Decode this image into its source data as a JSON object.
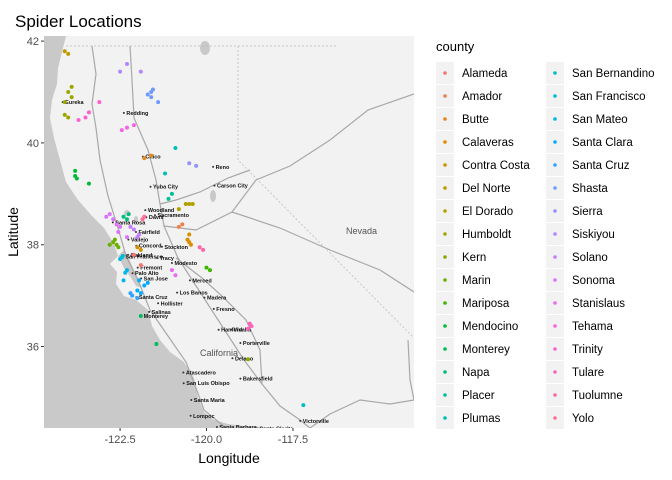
{
  "chart_data": {
    "type": "scatter",
    "title": "Spider Locations",
    "xlabel": "Longitude",
    "ylabel": "Latitude",
    "xlim": [
      -124.7,
      -114.0
    ],
    "ylim": [
      34.4,
      42.1
    ],
    "x_ticks": [
      -122.5,
      -120.0,
      -117.5
    ],
    "x_tick_labels": [
      "-122.5",
      "-120.0",
      "-117.5"
    ],
    "y_ticks": [
      36,
      38,
      40,
      42
    ],
    "y_tick_labels": [
      "36",
      "38",
      "40",
      "42"
    ],
    "background": "basemap",
    "legend": {
      "title": "county",
      "placement": "right",
      "columns": 2
    },
    "series": [
      {
        "name": "Alameda",
        "color": "#F8766D",
        "points": [
          [
            -121.9,
            37.6
          ],
          [
            -122.1,
            37.8
          ]
        ]
      },
      {
        "name": "Amador",
        "color": "#F07F48",
        "points": [
          [
            -120.7,
            38.4
          ],
          [
            -120.8,
            38.35
          ]
        ]
      },
      {
        "name": "Butte",
        "color": "#E7861B",
        "points": [
          [
            -121.6,
            39.75
          ],
          [
            -121.8,
            39.7
          ]
        ]
      },
      {
        "name": "Calaveras",
        "color": "#DB8E00",
        "points": [
          [
            -120.5,
            38.2
          ],
          [
            -120.55,
            38.1
          ],
          [
            -120.5,
            38.05
          ],
          [
            -120.45,
            38.0
          ]
        ]
      },
      {
        "name": "Contra Costa",
        "color": "#CF9400",
        "points": [
          [
            -122.0,
            37.95
          ],
          [
            -121.9,
            37.9
          ]
        ]
      },
      {
        "name": "Del Norte",
        "color": "#C09B00",
        "points": [
          [
            -124.0,
            41.75
          ],
          [
            -124.1,
            41.8
          ]
        ]
      },
      {
        "name": "El Dorado",
        "color": "#B0A100",
        "points": [
          [
            -120.5,
            38.8
          ],
          [
            -120.6,
            38.8
          ],
          [
            -120.4,
            38.8
          ],
          [
            -120.8,
            38.7
          ]
        ]
      },
      {
        "name": "Humboldt",
        "color": "#9DA700",
        "points": [
          [
            -124.0,
            41.0
          ],
          [
            -123.9,
            40.9
          ],
          [
            -124.1,
            40.8
          ],
          [
            -123.9,
            41.1
          ],
          [
            -124.0,
            40.5
          ],
          [
            -124.1,
            40.55
          ]
        ]
      },
      {
        "name": "Kern",
        "color": "#85AD00",
        "points": [
          [
            -118.8,
            35.75
          ]
        ]
      },
      {
        "name": "Marin",
        "color": "#6BB100",
        "points": [
          [
            -122.6,
            38.0
          ],
          [
            -122.7,
            38.05
          ],
          [
            -122.55,
            37.95
          ],
          [
            -122.8,
            38.0
          ],
          [
            -122.65,
            38.1
          ]
        ]
      },
      {
        "name": "Mariposa",
        "color": "#3DB600",
        "points": [
          [
            -119.9,
            37.5
          ],
          [
            -120.0,
            37.55
          ]
        ]
      },
      {
        "name": "Mendocino",
        "color": "#00BA38",
        "points": [
          [
            -123.8,
            39.45
          ],
          [
            -123.8,
            39.35
          ],
          [
            -123.75,
            39.3
          ],
          [
            -123.4,
            39.2
          ]
        ]
      },
      {
        "name": "Monterey",
        "color": "#00BC59",
        "points": [
          [
            -121.9,
            36.6
          ],
          [
            -121.45,
            36.05
          ]
        ]
      },
      {
        "name": "Napa",
        "color": "#00BF7D",
        "points": [
          [
            -122.3,
            38.5
          ],
          [
            -122.4,
            38.55
          ],
          [
            -122.25,
            38.6
          ]
        ]
      },
      {
        "name": "Placer",
        "color": "#00C19A",
        "points": [
          [
            -121.1,
            38.9
          ],
          [
            -121.0,
            39.0
          ]
        ]
      },
      {
        "name": "Plumas",
        "color": "#00C0B5",
        "points": [
          [
            -120.9,
            39.9
          ],
          [
            -121.2,
            39.4
          ]
        ]
      },
      {
        "name": "San Bernandino",
        "color": "#00BFC4",
        "points": [
          [
            -117.2,
            34.85
          ]
        ]
      },
      {
        "name": "San Francisco",
        "color": "#00BCD8",
        "points": [
          [
            -122.45,
            37.75
          ],
          [
            -122.42,
            37.78
          ],
          [
            -122.5,
            37.72
          ]
        ]
      },
      {
        "name": "San Mateo",
        "color": "#00B5EA",
        "points": [
          [
            -122.3,
            37.5
          ],
          [
            -122.35,
            37.45
          ],
          [
            -122.4,
            37.3
          ]
        ]
      },
      {
        "name": "Santa Clara",
        "color": "#00ACFC",
        "points": [
          [
            -121.95,
            37.3
          ],
          [
            -121.8,
            37.2
          ],
          [
            -122.0,
            37.1
          ],
          [
            -121.7,
            37.25
          ],
          [
            -121.9,
            37.05
          ]
        ]
      },
      {
        "name": "Santa Cruz",
        "color": "#35A2FF",
        "points": [
          [
            -122.0,
            36.95
          ],
          [
            -122.15,
            37.0
          ],
          [
            -122.2,
            37.05
          ]
        ]
      },
      {
        "name": "Shasta",
        "color": "#6F9AFF",
        "points": [
          [
            -121.6,
            41.0
          ],
          [
            -121.6,
            40.9
          ],
          [
            -121.7,
            40.95
          ],
          [
            -121.55,
            41.05
          ],
          [
            -121.4,
            40.8
          ]
        ]
      },
      {
        "name": "Sierra",
        "color": "#9590FF",
        "points": [
          [
            -120.5,
            39.6
          ],
          [
            -120.3,
            39.55
          ]
        ]
      },
      {
        "name": "Siskiyou",
        "color": "#AF87FF",
        "points": [
          [
            -122.3,
            41.55
          ],
          [
            -121.9,
            41.4
          ],
          [
            -122.5,
            41.4
          ]
        ]
      },
      {
        "name": "Solano",
        "color": "#C77CFF",
        "points": [
          [
            -122.2,
            38.35
          ],
          [
            -122.1,
            38.3
          ],
          [
            -121.95,
            38.2
          ],
          [
            -122.0,
            38.15
          ]
        ]
      },
      {
        "name": "Sonoma",
        "color": "#DB72FB",
        "points": [
          [
            -122.7,
            38.5
          ],
          [
            -122.8,
            38.6
          ],
          [
            -122.6,
            38.4
          ],
          [
            -122.9,
            38.55
          ],
          [
            -122.5,
            38.35
          ],
          [
            -122.3,
            38.15
          ],
          [
            -122.55,
            38.25
          ]
        ]
      },
      {
        "name": "Stanislaus",
        "color": "#E96AF1",
        "points": [
          [
            -120.9,
            37.4
          ],
          [
            -121.0,
            37.5
          ]
        ]
      },
      {
        "name": "Tehama",
        "color": "#F565E3",
        "points": [
          [
            -122.1,
            40.35
          ],
          [
            -122.3,
            40.3
          ],
          [
            -122.45,
            40.25
          ]
        ]
      },
      {
        "name": "Trinity",
        "color": "#FD61D1",
        "points": [
          [
            -123.5,
            40.5
          ],
          [
            -123.7,
            40.45
          ],
          [
            -123.4,
            40.6
          ],
          [
            -123.1,
            40.8
          ]
        ]
      },
      {
        "name": "Tulare",
        "color": "#FF61BC",
        "points": [
          [
            -118.75,
            36.45
          ],
          [
            -118.8,
            36.35
          ],
          [
            -118.7,
            36.4
          ]
        ]
      },
      {
        "name": "Tuolumne",
        "color": "#FF65A7",
        "points": [
          [
            -120.1,
            37.9
          ],
          [
            -120.2,
            37.95
          ]
        ]
      },
      {
        "name": "Yolo",
        "color": "#FF6C91",
        "points": [
          [
            -121.8,
            38.55
          ],
          [
            -121.85,
            38.5
          ]
        ]
      }
    ],
    "map_labels": {
      "regions": [
        "Nevada",
        "California"
      ],
      "cities": [
        "Eureka",
        "Redding",
        "Chico",
        "Reno",
        "Carson City",
        "Yuba City",
        "Sacramento",
        "Woodland",
        "Santa Rosa",
        "Davis",
        "Fairfield",
        "Vallejo",
        "Concord",
        "Stockton",
        "San Francisco",
        "Oakland",
        "Tracy",
        "Modesto",
        "Palo Alto",
        "Fremont",
        "San Jose",
        "Merced",
        "Santa Cruz",
        "Los Banos",
        "Madera",
        "Fresno",
        "Hollister",
        "Salinas",
        "Monterey",
        "Hanford",
        "Visalia",
        "Porterville",
        "Delano",
        "Bakersfield",
        "Atascadero",
        "San Luis Obispo",
        "Santa Maria",
        "Lompoc",
        "Santa Barbara",
        "Santa Clarita",
        "Victorville"
      ]
    }
  }
}
